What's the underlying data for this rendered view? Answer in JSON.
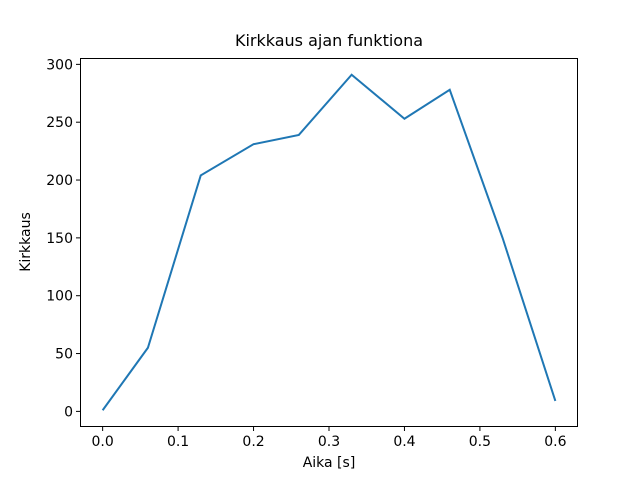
{
  "figure": {
    "background": "#ffffff",
    "text_color": "#000000",
    "spine_color": "#000000"
  },
  "chart_data": {
    "type": "line",
    "title": "Kirkkaus ajan funktiona",
    "xlabel": "Aika [s]",
    "ylabel": "Kirkkaus",
    "x": [
      0.0,
      0.06,
      0.13,
      0.2,
      0.26,
      0.33,
      0.4,
      0.46,
      0.53,
      0.6
    ],
    "y": [
      1,
      55,
      204,
      231,
      239,
      291,
      253,
      278,
      150,
      9
    ],
    "series_name": "Kirkkaus",
    "line_color": "#1f77b4",
    "line_width": 2,
    "xlim": [
      -0.03,
      0.63
    ],
    "ylim": [
      -13.5,
      305.5
    ],
    "xticks": [
      0.0,
      0.1,
      0.2,
      0.3,
      0.4,
      0.5,
      0.6
    ],
    "xtick_labels": [
      "0.0",
      "0.1",
      "0.2",
      "0.3",
      "0.4",
      "0.5",
      "0.6"
    ],
    "yticks": [
      0,
      50,
      100,
      150,
      200,
      250,
      300
    ],
    "ytick_labels": [
      "0",
      "50",
      "100",
      "150",
      "200",
      "250",
      "300"
    ],
    "grid": false,
    "legend": null
  }
}
